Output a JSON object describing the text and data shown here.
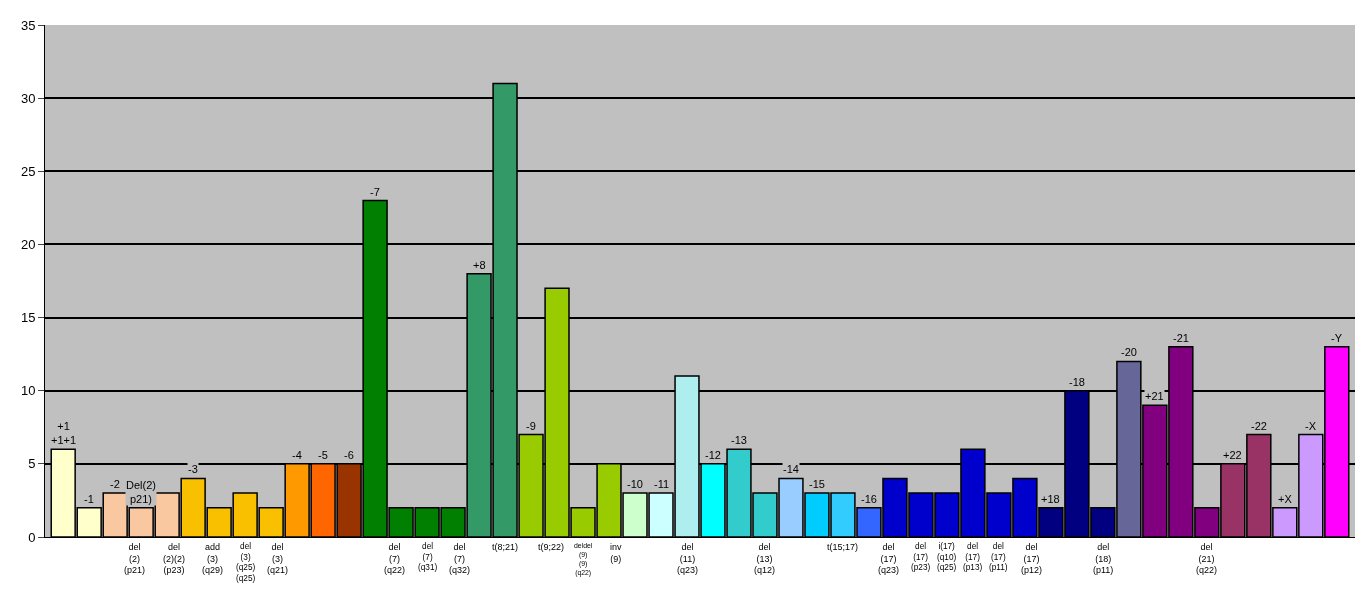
{
  "chart_data": {
    "type": "bar",
    "categories": [
      null,
      null,
      null,
      "del\n(2)\n(p21)",
      "del\n(2)(2)\n(p23)",
      null,
      "add\n(3)\n(q29)",
      "del\n(3)\n(q25)(q25)",
      "del\n(3)\n(q21)",
      null,
      null,
      null,
      null,
      "del\n(7)\n(q22)",
      "del\n(7)\n(q31)",
      "del\n(7)\n(q32)",
      null,
      "t(8;21)",
      null,
      "t(9;22)",
      "deldel\n(9)(9)\n(q22)",
      "inv\n(9)",
      null,
      null,
      "del\n(11)\n(q23)",
      null,
      null,
      "del\n(13)\n(q12)",
      null,
      null,
      "t(15;17)",
      null,
      "del\n(17)\n(q23)",
      "del\n(17)\n(p23)",
      "i(17)\n(q10)\n(q25)",
      "del\n(17)\n(p13)",
      "del\n(17)\n(p11)",
      "del\n(17)\n(p12)",
      null,
      null,
      "del\n(18)\n(p11)",
      null,
      null,
      null,
      "del\n(21)\n(q22)",
      null,
      null,
      null,
      null,
      null
    ],
    "values": [
      6,
      2,
      3,
      2,
      3,
      4,
      2,
      3,
      2,
      5,
      5,
      5,
      23,
      2,
      2,
      2,
      18,
      31,
      7,
      17,
      2,
      5,
      3,
      3,
      11,
      5,
      6,
      3,
      4,
      3,
      3,
      2,
      4,
      3,
      3,
      6,
      3,
      4,
      2,
      10,
      2,
      12,
      9,
      13,
      2,
      5,
      7,
      2,
      7,
      13
    ],
    "annotations": [
      {
        "text": "+1\n+1+1",
        "y": 6
      },
      {
        "text": "-1",
        "y": 2
      },
      {
        "text": "-2",
        "y": 3
      },
      {
        "text": "Del(2)\np21)",
        "x": "del\n(2)\n(p21)",
        "y": 2
      },
      {
        "text": "-3",
        "y": 4
      },
      {
        "text": "-4",
        "y": 5
      },
      {
        "text": "-5",
        "y": 5
      },
      {
        "text": "-6",
        "y": 5
      },
      {
        "text": "-7",
        "y": 23
      },
      {
        "text": "+8",
        "y": 18
      },
      {
        "text": "-9",
        "y": 7
      },
      {
        "text": "-10",
        "y": 3
      },
      {
        "text": "-11",
        "y": 3
      },
      {
        "text": "-12",
        "y": 5
      },
      {
        "text": "-13",
        "y": 6
      },
      {
        "text": "-14",
        "y": 4
      },
      {
        "text": "-15",
        "y": 3
      },
      {
        "text": "-16",
        "y": 2
      },
      {
        "text": "+18",
        "y": 2
      },
      {
        "text": "-18",
        "y": 10
      },
      {
        "text": "-20",
        "y": 12
      },
      {
        "text": "+21",
        "y": 9
      },
      {
        "text": "-21",
        "y": 13
      },
      {
        "text": "+22",
        "y": 5
      },
      {
        "text": "-22",
        "y": 7
      },
      {
        "text": "+X",
        "y": 2
      },
      {
        "text": "-X",
        "y": 7
      },
      {
        "text": "-Y",
        "y": 13
      }
    ],
    "colors": [
      "#ffffcc",
      "#ffffcc",
      "#f9c8a0",
      "#f9c8a0",
      "#f9c8a0",
      "#f9c000",
      "#f9c000",
      "#f9c000",
      "#f9c000",
      "#ff9900",
      "#ff6600",
      "#993300",
      "#007f00",
      "#007f00",
      "#007f00",
      "#007f00",
      "#339966",
      "#339966",
      "#99cc00",
      "#99cc00",
      "#99cc00",
      "#99cc00",
      "#ccffcc",
      "#ccffff",
      "#aeeeee",
      "#00ffff",
      "#33cccc",
      "#33cccc",
      "#99ccff",
      "#00ccff",
      "#33ccff",
      "#3366ff",
      "#0000cc",
      "#0000cc",
      "#0000cc",
      "#0000cc",
      "#0000cc",
      "#0000cc",
      "#000080",
      "#000080",
      "#000080",
      "#666699",
      "#800080",
      "#800080",
      "#800080",
      "#993366",
      "#993366",
      "#cc99ff",
      "#cc99ff",
      "#ff00ff"
    ],
    "ylim": [
      0,
      35
    ],
    "yticks": [
      0,
      5,
      10,
      15,
      20,
      25,
      30,
      35
    ],
    "grid": "y",
    "legend": false
  }
}
